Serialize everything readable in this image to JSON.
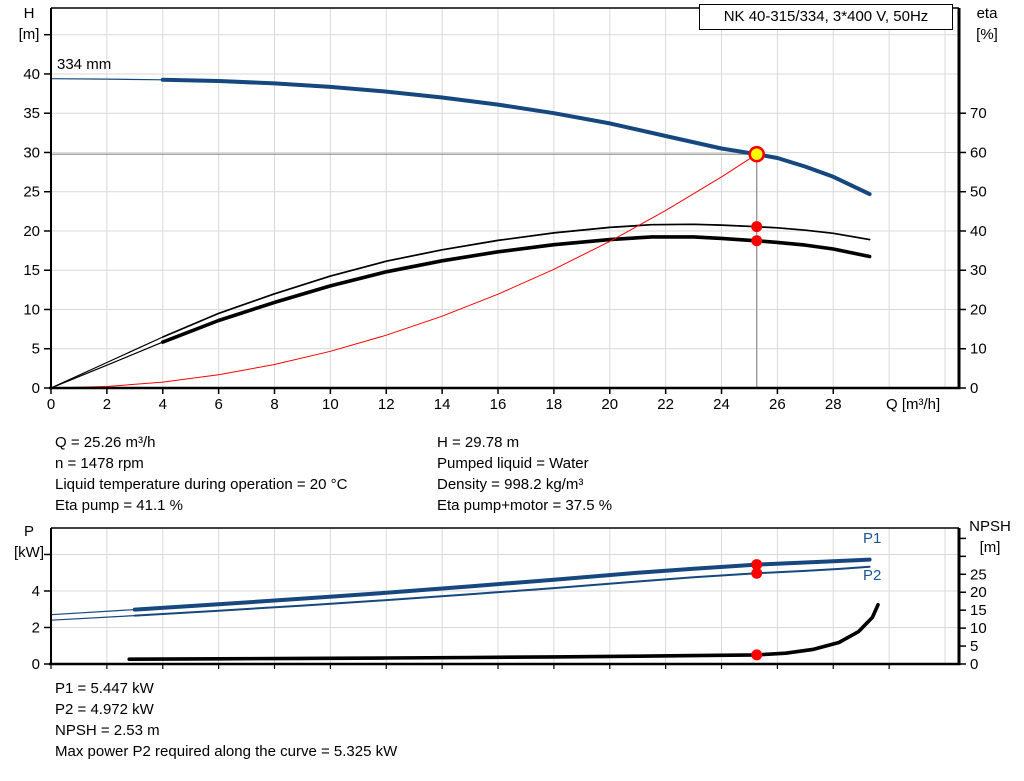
{
  "title": "NK 40-315/334, 3*400 V, 50Hz",
  "colors": {
    "blue": "#16477e",
    "black": "#000000",
    "red": "#ff0000",
    "yellow": "#ffff00",
    "grid": "#d9d9d9",
    "crosshair": "#8a8a8a",
    "label_blue": "#1d5493"
  },
  "top_chart": {
    "left_axis": {
      "title": "H",
      "unit": "[m]"
    },
    "right_axis": {
      "title": "eta",
      "unit": "[%]"
    },
    "x_axis": {
      "label": "Q [m³/h]"
    },
    "impeller_label": "334 mm"
  },
  "bottom_chart": {
    "left_axis": {
      "title": "P",
      "unit": "[kW]"
    },
    "right_axis": {
      "title": "NPSH",
      "unit": "[m]"
    },
    "p1_label": "P1",
    "p2_label": "P2"
  },
  "info_left": [
    "Q = 25.26 m³/h",
    "n = 1478 rpm",
    "Liquid temperature during operation = 20 °C",
    "Eta pump = 41.1 %"
  ],
  "info_right": [
    "H = 29.78 m",
    "Pumped liquid = Water",
    "Density = 998.2 kg/m³",
    "Eta pump+motor = 37.5 %"
  ],
  "info_bottom": [
    "P1 = 5.447 kW",
    "P2 = 4.972 kW",
    "NPSH = 2.53 m",
    "Max power P2 required along the curve = 5.325 kW"
  ],
  "chart_data": [
    {
      "id": "head-efficiency-chart",
      "type": "line",
      "title": "NK 40-315/334, 3*400 V, 50Hz",
      "xlabel": "Q [m³/h]",
      "ylabel_left": "H [m]",
      "ylabel_right": "eta [%]",
      "xlim": [
        0,
        32.5
      ],
      "ylim_left": [
        0,
        48.4
      ],
      "ylim_right": [
        0,
        96.8
      ],
      "grid": true,
      "x_ticks": [
        0,
        2,
        4,
        6,
        8,
        10,
        12,
        14,
        16,
        18,
        20,
        22,
        24,
        26,
        28
      ],
      "left_ticks": [
        0,
        5,
        10,
        15,
        20,
        25,
        30,
        35,
        40
      ],
      "left_ticks_unlabeled": [
        45
      ],
      "right_ticks": [
        0,
        10,
        20,
        30,
        40,
        50,
        60,
        70
      ],
      "right_ticks_unlabeled": [],
      "grid_x_step": 2,
      "grid_y_left_step": 5,
      "series": [
        {
          "name": "head-curve-334mm",
          "axis": "left",
          "color": "blue",
          "width": 4,
          "thin_until": 2.6,
          "points": [
            [
              0,
              39.4
            ],
            [
              2,
              39.35
            ],
            [
              4,
              39.25
            ],
            [
              6,
              39.1
            ],
            [
              8,
              38.8
            ],
            [
              10,
              38.35
            ],
            [
              12,
              37.75
            ],
            [
              14,
              37.0
            ],
            [
              16,
              36.1
            ],
            [
              18,
              35.0
            ],
            [
              20,
              33.7
            ],
            [
              22,
              32.1
            ],
            [
              24,
              30.5
            ],
            [
              25.26,
              29.78
            ],
            [
              26,
              29.3
            ],
            [
              27,
              28.2
            ],
            [
              28,
              26.9
            ],
            [
              29.3,
              24.7
            ]
          ]
        },
        {
          "name": "eta-pump-curve",
          "axis": "right",
          "color": "black",
          "width": 1.7,
          "thin_until": 3,
          "points": [
            [
              0,
              0
            ],
            [
              2,
              6.5
            ],
            [
              4,
              13.0
            ],
            [
              6,
              19.0
            ],
            [
              8,
              24.0
            ],
            [
              10,
              28.5
            ],
            [
              12,
              32.3
            ],
            [
              14,
              35.2
            ],
            [
              16,
              37.6
            ],
            [
              18,
              39.5
            ],
            [
              20,
              40.9
            ],
            [
              21.5,
              41.6
            ],
            [
              23,
              41.7
            ],
            [
              24,
              41.5
            ],
            [
              25.26,
              41.1
            ],
            [
              26,
              40.8
            ],
            [
              27,
              40.2
            ],
            [
              28,
              39.4
            ],
            [
              29.3,
              37.8
            ]
          ]
        },
        {
          "name": "eta-pump-motor-curve",
          "axis": "right",
          "color": "black",
          "width": 3.6,
          "thin_until": 3,
          "points": [
            [
              0,
              0
            ],
            [
              2,
              5.8
            ],
            [
              4,
              11.7
            ],
            [
              6,
              17.2
            ],
            [
              8,
              21.8
            ],
            [
              10,
              26.0
            ],
            [
              12,
              29.6
            ],
            [
              14,
              32.4
            ],
            [
              16,
              34.7
            ],
            [
              18,
              36.5
            ],
            [
              20,
              37.8
            ],
            [
              21.5,
              38.5
            ],
            [
              23,
              38.5
            ],
            [
              24,
              38.1
            ],
            [
              25.26,
              37.5
            ],
            [
              26,
              37.1
            ],
            [
              27,
              36.4
            ],
            [
              28,
              35.4
            ],
            [
              29.3,
              33.5
            ]
          ]
        },
        {
          "name": "system-curve",
          "axis": "left",
          "color": "red",
          "width": 1,
          "points": [
            [
              0,
              0
            ],
            [
              2,
              0.19
            ],
            [
              4,
              0.75
            ],
            [
              6,
              1.68
            ],
            [
              8,
              2.99
            ],
            [
              10,
              4.67
            ],
            [
              12,
              6.72
            ],
            [
              14,
              9.15
            ],
            [
              16,
              11.95
            ],
            [
              18,
              15.12
            ],
            [
              20,
              18.67
            ],
            [
              22,
              22.59
            ],
            [
              24,
              26.89
            ],
            [
              25.26,
              29.78
            ]
          ]
        }
      ],
      "markers": [
        {
          "name": "duty-point",
          "x": 25.26,
          "y": 29.78,
          "axis": "left",
          "style": "duty"
        },
        {
          "name": "eta-pump-point",
          "x": 25.26,
          "y": 41.1,
          "axis": "right",
          "style": "dot"
        },
        {
          "name": "eta-pump-motor-point",
          "x": 25.26,
          "y": 37.5,
          "axis": "right",
          "style": "dot"
        }
      ],
      "crosshair": {
        "x": 25.26,
        "y": 29.78
      }
    },
    {
      "id": "power-npsh-chart",
      "type": "line",
      "xlabel": "",
      "ylabel_left": "P [kW]",
      "ylabel_right": "NPSH [m]",
      "xlim": [
        0,
        32.5
      ],
      "ylim_left": [
        0,
        7.45
      ],
      "ylim_right": [
        0,
        37.9
      ],
      "grid": true,
      "x_ticks": [],
      "x_ticks_unlabeled": [
        0,
        2,
        4,
        6,
        8,
        10,
        12,
        14,
        16,
        18,
        20,
        22,
        24,
        26,
        28,
        30
      ],
      "left_ticks": [
        0,
        2,
        4
      ],
      "left_ticks_unlabeled": [
        6
      ],
      "right_ticks": [
        0,
        5,
        10,
        15,
        20,
        25
      ],
      "right_ticks_unlabeled": [
        30,
        35
      ],
      "grid_x_step": 2,
      "grid_y_left_step": 2,
      "series": [
        {
          "name": "p1-curve",
          "axis": "left",
          "color": "blue",
          "width": 4,
          "thin_until": 3,
          "points": [
            [
              0,
              2.7
            ],
            [
              3,
              2.98
            ],
            [
              6,
              3.27
            ],
            [
              9,
              3.58
            ],
            [
              12,
              3.9
            ],
            [
              15,
              4.25
            ],
            [
              18,
              4.62
            ],
            [
              21,
              5.0
            ],
            [
              23,
              5.22
            ],
            [
              25.26,
              5.447
            ],
            [
              27,
              5.56
            ],
            [
              28.3,
              5.65
            ],
            [
              29.3,
              5.72
            ]
          ]
        },
        {
          "name": "p2-curve",
          "axis": "left",
          "color": "blue",
          "width": 2,
          "thin_until": 3,
          "points": [
            [
              0,
              2.4
            ],
            [
              3,
              2.65
            ],
            [
              6,
              2.92
            ],
            [
              9,
              3.2
            ],
            [
              12,
              3.5
            ],
            [
              15,
              3.82
            ],
            [
              18,
              4.16
            ],
            [
              21,
              4.52
            ],
            [
              23,
              4.75
            ],
            [
              25.26,
              4.972
            ],
            [
              27,
              5.1
            ],
            [
              28.3,
              5.22
            ],
            [
              29.3,
              5.325
            ]
          ]
        },
        {
          "name": "npsh-curve",
          "axis": "right",
          "color": "black",
          "width": 3.6,
          "points": [
            [
              2.8,
              1.35
            ],
            [
              6,
              1.45
            ],
            [
              9,
              1.55
            ],
            [
              12,
              1.68
            ],
            [
              15,
              1.82
            ],
            [
              18,
              1.98
            ],
            [
              21,
              2.18
            ],
            [
              23,
              2.33
            ],
            [
              25.26,
              2.53
            ],
            [
              26.3,
              3.0
            ],
            [
              27.3,
              4.1
            ],
            [
              28.2,
              6.0
            ],
            [
              28.9,
              9.0
            ],
            [
              29.4,
              13.0
            ],
            [
              29.6,
              16.5
            ]
          ]
        }
      ],
      "markers": [
        {
          "name": "p1-point",
          "x": 25.26,
          "y": 5.447,
          "axis": "left",
          "style": "dot"
        },
        {
          "name": "p2-point",
          "x": 25.26,
          "y": 4.972,
          "axis": "left",
          "style": "dot"
        },
        {
          "name": "npsh-point",
          "x": 25.26,
          "y": 2.53,
          "axis": "right",
          "style": "dot"
        }
      ]
    }
  ]
}
